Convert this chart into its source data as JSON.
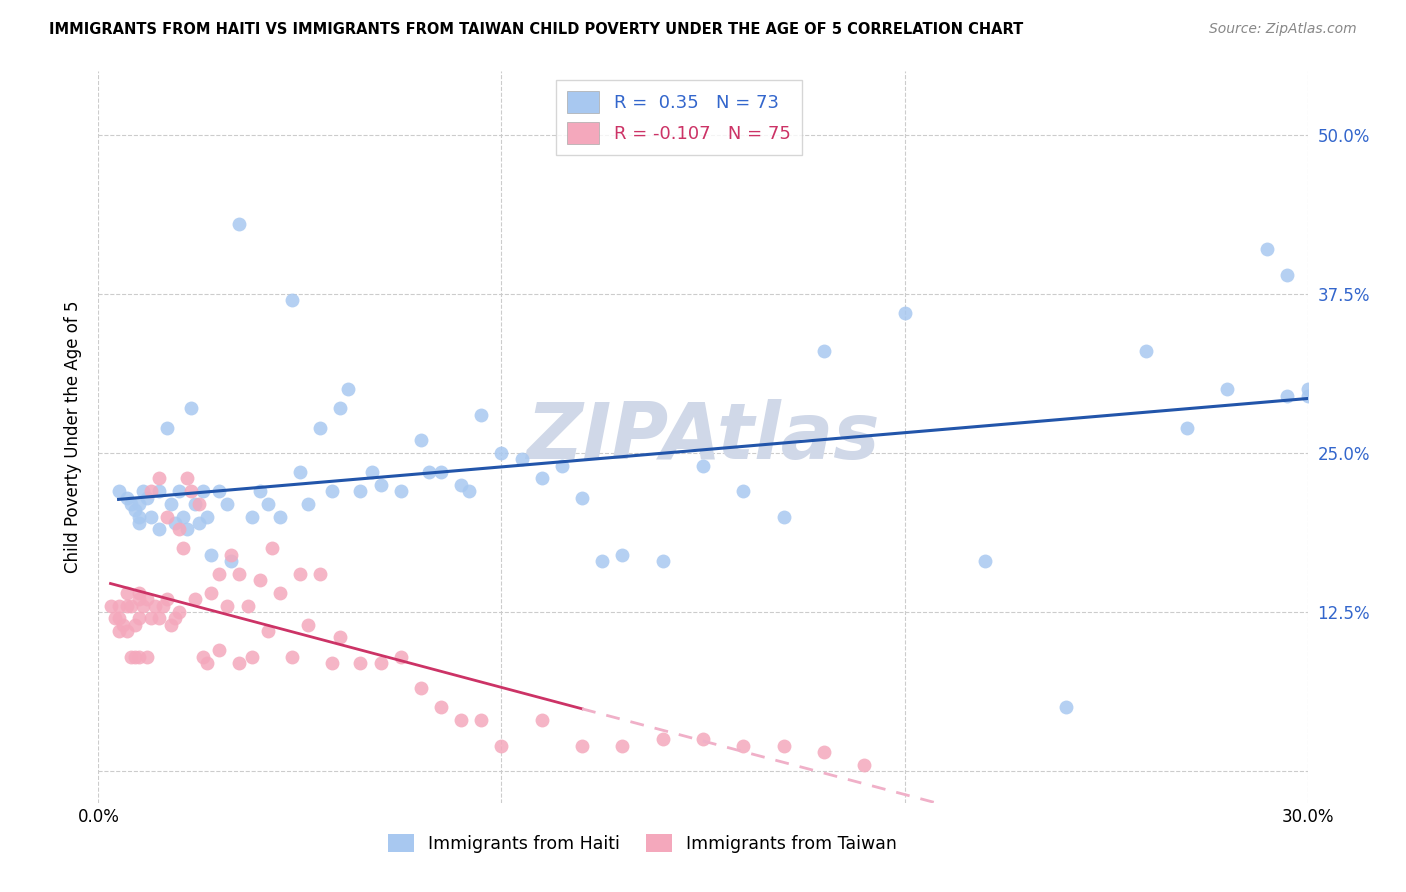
{
  "title": "IMMIGRANTS FROM HAITI VS IMMIGRANTS FROM TAIWAN CHILD POVERTY UNDER THE AGE OF 5 CORRELATION CHART",
  "source": "Source: ZipAtlas.com",
  "ylabel": "Child Poverty Under the Age of 5",
  "xlim": [
    0.0,
    0.3
  ],
  "ylim": [
    -0.025,
    0.55
  ],
  "yticks": [
    0.0,
    0.125,
    0.25,
    0.375,
    0.5
  ],
  "ytick_labels": [
    "",
    "12.5%",
    "25.0%",
    "37.5%",
    "50.0%"
  ],
  "xticks": [
    0.0,
    0.1,
    0.2,
    0.3
  ],
  "xtick_labels": [
    "0.0%",
    "",
    "",
    "30.0%"
  ],
  "haiti_R": 0.35,
  "haiti_N": 73,
  "taiwan_R": -0.107,
  "taiwan_N": 75,
  "haiti_color": "#a8c8f0",
  "taiwan_color": "#f4a8bc",
  "haiti_line_color": "#2255aa",
  "taiwan_solid_line_color": "#cc3366",
  "taiwan_dashed_line_color": "#f0b0c8",
  "background_color": "#ffffff",
  "grid_color": "#cccccc",
  "watermark_color": "#d0d8e8",
  "haiti_x": [
    0.005,
    0.007,
    0.008,
    0.009,
    0.01,
    0.01,
    0.01,
    0.011,
    0.012,
    0.013,
    0.015,
    0.015,
    0.017,
    0.018,
    0.019,
    0.02,
    0.021,
    0.022,
    0.023,
    0.024,
    0.025,
    0.026,
    0.027,
    0.028,
    0.03,
    0.032,
    0.033,
    0.035,
    0.038,
    0.04,
    0.042,
    0.045,
    0.048,
    0.05,
    0.052,
    0.055,
    0.058,
    0.06,
    0.062,
    0.065,
    0.068,
    0.07,
    0.075,
    0.08,
    0.082,
    0.085,
    0.09,
    0.092,
    0.095,
    0.1,
    0.105,
    0.11,
    0.115,
    0.12,
    0.125,
    0.13,
    0.14,
    0.15,
    0.16,
    0.17,
    0.18,
    0.2,
    0.22,
    0.24,
    0.26,
    0.27,
    0.28,
    0.29,
    0.295,
    0.295,
    0.3,
    0.3,
    0.305
  ],
  "haiti_y": [
    0.22,
    0.215,
    0.21,
    0.205,
    0.21,
    0.2,
    0.195,
    0.22,
    0.215,
    0.2,
    0.22,
    0.19,
    0.27,
    0.21,
    0.195,
    0.22,
    0.2,
    0.19,
    0.285,
    0.21,
    0.195,
    0.22,
    0.2,
    0.17,
    0.22,
    0.21,
    0.165,
    0.43,
    0.2,
    0.22,
    0.21,
    0.2,
    0.37,
    0.235,
    0.21,
    0.27,
    0.22,
    0.285,
    0.3,
    0.22,
    0.235,
    0.225,
    0.22,
    0.26,
    0.235,
    0.235,
    0.225,
    0.22,
    0.28,
    0.25,
    0.245,
    0.23,
    0.24,
    0.215,
    0.165,
    0.17,
    0.165,
    0.24,
    0.22,
    0.2,
    0.33,
    0.36,
    0.165,
    0.05,
    0.33,
    0.27,
    0.3,
    0.41,
    0.295,
    0.39,
    0.295,
    0.3,
    0.3
  ],
  "taiwan_x": [
    0.003,
    0.004,
    0.005,
    0.005,
    0.005,
    0.006,
    0.007,
    0.007,
    0.007,
    0.008,
    0.008,
    0.009,
    0.009,
    0.01,
    0.01,
    0.01,
    0.01,
    0.011,
    0.012,
    0.012,
    0.013,
    0.013,
    0.014,
    0.015,
    0.015,
    0.016,
    0.017,
    0.017,
    0.018,
    0.019,
    0.02,
    0.02,
    0.021,
    0.022,
    0.023,
    0.024,
    0.025,
    0.026,
    0.027,
    0.028,
    0.03,
    0.03,
    0.032,
    0.033,
    0.035,
    0.035,
    0.037,
    0.038,
    0.04,
    0.042,
    0.043,
    0.045,
    0.048,
    0.05,
    0.052,
    0.055,
    0.058,
    0.06,
    0.065,
    0.07,
    0.075,
    0.08,
    0.085,
    0.09,
    0.095,
    0.1,
    0.11,
    0.12,
    0.13,
    0.14,
    0.15,
    0.16,
    0.17,
    0.18,
    0.19
  ],
  "taiwan_y": [
    0.13,
    0.12,
    0.13,
    0.12,
    0.11,
    0.115,
    0.14,
    0.13,
    0.11,
    0.13,
    0.09,
    0.115,
    0.09,
    0.14,
    0.135,
    0.12,
    0.09,
    0.13,
    0.135,
    0.09,
    0.22,
    0.12,
    0.13,
    0.23,
    0.12,
    0.13,
    0.2,
    0.135,
    0.115,
    0.12,
    0.19,
    0.125,
    0.175,
    0.23,
    0.22,
    0.135,
    0.21,
    0.09,
    0.085,
    0.14,
    0.155,
    0.095,
    0.13,
    0.17,
    0.155,
    0.085,
    0.13,
    0.09,
    0.15,
    0.11,
    0.175,
    0.14,
    0.09,
    0.155,
    0.115,
    0.155,
    0.085,
    0.105,
    0.085,
    0.085,
    0.09,
    0.065,
    0.05,
    0.04,
    0.04,
    0.02,
    0.04,
    0.02,
    0.02,
    0.025,
    0.025,
    0.02,
    0.02,
    0.015,
    0.005
  ]
}
